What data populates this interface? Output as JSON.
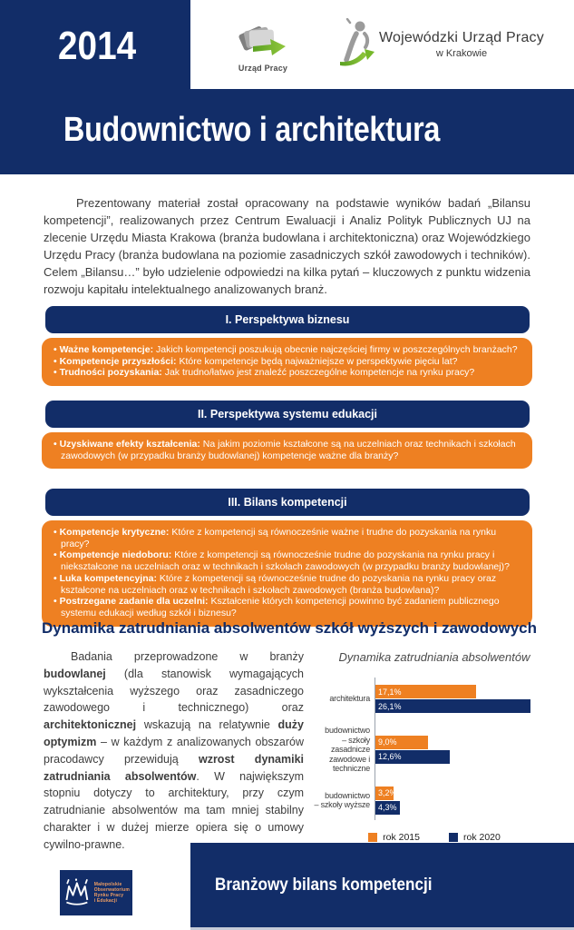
{
  "header": {
    "year": "2014",
    "title": "Budownictwo i architektura",
    "logo_urzad_pracy_label": "Urząd Pracy",
    "logo_wup_line1": "Wojewódzki Urząd Pracy",
    "logo_wup_line2": "w Krakowie"
  },
  "intro": "Prezentowany materiał został opracowany na podstawie wyników badań „Bilansu kompetencji”, realizowanych przez Centrum Ewaluacji i Analiz Polityk Publicznych UJ na zlecenie Urzędu Miasta Krakowa (branża budowlana i architektoniczna) oraz Wojewódzkiego Urzędu Pracy (branża budowlana na poziomie zasadniczych szkół zawodowych i techników). Celem „Bilansu…” było udzielenie odpowiedzi na kilka pytań – kluczowych z punktu widzenia rozwoju kapitału intelektualnego analizowanych branż.",
  "sections": [
    {
      "title": "I. Perspektywa biznesu",
      "bullets": [
        {
          "label": "Ważne kompetencje:",
          "text": "Jakich kompetencji poszukują obecnie najczęściej firmy w poszczególnych branżach?"
        },
        {
          "label": "Kompetencje przyszłości:",
          "text": "Które kompetencje będą najważniejsze w perspektywie pięciu lat?"
        },
        {
          "label": "Trudności pozyskania:",
          "text": "Jak trudno/łatwo jest znaleźć poszczególne kompetencje na rynku pracy?"
        }
      ]
    },
    {
      "title": "II. Perspektywa systemu edukacji",
      "bullets": [
        {
          "label": "Uzyskiwane efekty kształcenia:",
          "text": "Na jakim poziomie kształcone są na uczelniach oraz technikach i szkołach zawodowych (w przypadku branży budowlanej) kompetencje ważne dla branży?"
        }
      ]
    },
    {
      "title": "III. Bilans kompetencji",
      "bullets": [
        {
          "label": "Kompetencje krytyczne:",
          "text": "Które z kompetencji są równocześnie ważne i trudne do pozyskania na rynku pracy?"
        },
        {
          "label": "Kompetencje niedoboru:",
          "text": "Które z kompetencji są równocześnie trudne do pozyskania na rynku pracy i niekształcone na uczelniach oraz w technikach i szkołach zawodowych (w przypadku branży budowlanej)?"
        },
        {
          "label": "Luka kompetencyjna:",
          "text": "Które z kompetencji są równocześnie trudne do pozyskania na rynku pracy oraz kształcone na uczelniach oraz w technikach i szkołach zawodowych (branża budowlana)?"
        },
        {
          "label": "Postrzegane zadanie dla uczelni:",
          "text": "Kształcenie których kompetencji powinno być zadaniem publicznego systemu edukacji według szkół i biznesu?"
        }
      ]
    }
  ],
  "dynamics": {
    "heading": "Dynamika zatrudniania absolwentów szkół wyższych i zawodowych",
    "parts": [
      {
        "t": "Badania przeprowadzone w branży ",
        "b": false
      },
      {
        "t": "budowlanej",
        "b": true
      },
      {
        "t": " (dla stanowisk wymagających wykształcenia wyższego oraz zasadniczego zawodowego i technicznego) oraz ",
        "b": false
      },
      {
        "t": "architektonicznej",
        "b": true
      },
      {
        "t": " wskazują na relatywnie ",
        "b": false
      },
      {
        "t": "duży optymizm",
        "b": true
      },
      {
        "t": " – w każdym z analizowanych obszarów pracodawcy przewidują ",
        "b": false
      },
      {
        "t": "wzrost dynamiki zatrudniania absolwentów",
        "b": true
      },
      {
        "t": ". W największym stopniu dotyczy to architektury, przy czym zatrudnianie absolwentów ma tam mniej stabilny charakter i w dużej mierze opiera się o umowy cywilno-prawne.",
        "b": false
      }
    ]
  },
  "chart_data": {
    "type": "bar",
    "orientation": "horizontal",
    "title": "Dynamika zatrudniania absolwentów",
    "categories": [
      "architektura",
      "budownictwo – szkoły zasadnicze zawodowe i techniczne",
      "budownictwo – szkoły wyższe"
    ],
    "category_lines": [
      [
        "architektura"
      ],
      [
        "budownictwo",
        "– szkoły zasadnicze",
        "zawodowe i techniczne"
      ],
      [
        "budownictwo",
        "– szkoły wyższe"
      ]
    ],
    "series": [
      {
        "name": "rok 2015",
        "color": "#ee8022",
        "values": [
          17.1,
          9.0,
          3.2
        ],
        "labels": [
          "17,1%",
          "9,0%",
          "3,2%"
        ]
      },
      {
        "name": "rok 2020",
        "color": "#122d68",
        "values": [
          26.1,
          12.6,
          4.3
        ],
        "labels": [
          "26,1%",
          "12,6%",
          "4,3%"
        ]
      }
    ],
    "xlim": [
      0,
      31.5
    ],
    "value_labels_inside": true,
    "legend_position": "bottom",
    "grid": false
  },
  "footer": {
    "logo_lines": [
      "Małopolskie",
      "Obserwatorium",
      "Rynku Pracy",
      "i Edukacji"
    ],
    "banner": "Branżowy bilans kompetencji"
  },
  "icons": {
    "urzad_pracy": "fanned-cards-with-green-arrow",
    "wup": "person-figure-with-green-swoosh",
    "moripe": "hand-drawn-crown"
  },
  "colors": {
    "navy": "#122d68",
    "orange": "#ee8022",
    "green": "#76b82a",
    "body_text": "#3d3d3d",
    "footer_strip": "#c5cbd8"
  }
}
